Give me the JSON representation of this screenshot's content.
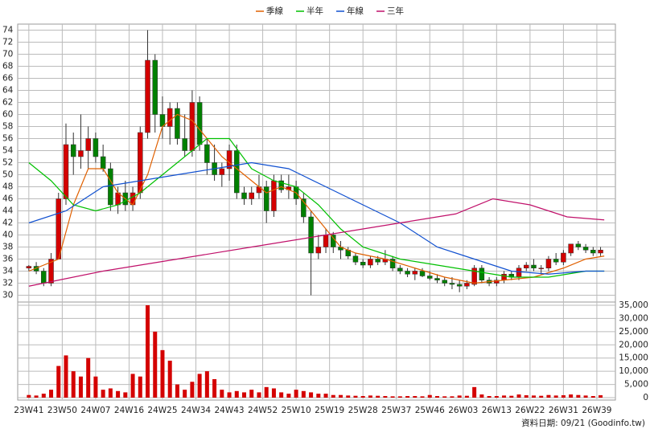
{
  "chart_data": {
    "type": "candlestick",
    "note": "資料日期: 09/21  (Goodinfo.tw)",
    "up_color": "#d40000",
    "down_color": "#008000",
    "volume_color": "#d40000",
    "x": [
      0,
      2,
      4,
      6,
      8,
      10,
      12,
      14,
      16,
      18,
      20,
      22,
      24,
      26,
      28,
      30,
      32,
      34,
      36,
      38,
      40,
      42,
      44,
      46,
      48,
      50,
      52,
      54,
      56,
      58,
      60,
      62,
      64,
      66,
      68,
      70,
      72,
      74,
      76,
      78,
      80,
      82,
      84,
      86,
      88,
      90,
      92,
      94,
      96,
      98,
      100,
      102,
      104,
      106,
      108,
      110,
      112,
      114,
      116,
      118,
      120,
      122,
      124,
      126,
      128,
      130,
      132,
      134,
      136,
      138,
      140,
      142,
      144,
      146,
      148,
      150,
      152,
      154
    ],
    "open": [
      34.5,
      34.8,
      34,
      32,
      36,
      46,
      55,
      53,
      54,
      56,
      53,
      51,
      45,
      47,
      45,
      47,
      57,
      69,
      60,
      58,
      61,
      56,
      54,
      62,
      55,
      52,
      50,
      51,
      54,
      47,
      46,
      47,
      48,
      44,
      49,
      47.5,
      48,
      46,
      43,
      37,
      38,
      40,
      38,
      37.5,
      36.5,
      35.5,
      35,
      36,
      35.5,
      36,
      34.5,
      34,
      33.5,
      34,
      33.2,
      32.8,
      32.5,
      32,
      31.8,
      31.5,
      31.8,
      34.5,
      32.5,
      32,
      32.5,
      33.5,
      33,
      34.5,
      35,
      34.5,
      34.5,
      36,
      35.5,
      37,
      38.5,
      38,
      37.5,
      37
    ],
    "high": [
      35,
      35.5,
      34.5,
      37,
      47,
      58.5,
      57,
      60,
      58,
      57,
      55,
      52,
      48,
      49,
      48,
      58,
      74,
      70,
      63,
      62,
      62,
      60,
      64,
      63,
      56,
      55,
      52,
      55,
      55,
      48,
      48,
      50,
      49,
      50,
      50,
      50,
      49,
      47,
      44,
      40,
      41,
      40.5,
      39,
      38,
      37,
      36,
      36.5,
      36.5,
      37.5,
      36.5,
      35,
      34.5,
      34.5,
      34.5,
      34,
      33.5,
      33,
      33,
      32.5,
      32.5,
      35,
      35,
      33,
      33,
      34,
      34,
      35,
      35.5,
      36,
      35,
      36.5,
      37,
      37.5,
      38.5,
      39,
      38.5,
      38,
      38
    ],
    "low": [
      34,
      33.5,
      31.5,
      31.5,
      36,
      45,
      50,
      51,
      51,
      52,
      50.5,
      44,
      43.5,
      44,
      44,
      46,
      56,
      57,
      56,
      55,
      55,
      53,
      53,
      54,
      50,
      49,
      48,
      49,
      46,
      45,
      45,
      46,
      42,
      43,
      47,
      46,
      45,
      42,
      30,
      36,
      37,
      37,
      36,
      36,
      35,
      34.5,
      34.5,
      35,
      35,
      34,
      33.5,
      33,
      32.5,
      33,
      32.5,
      32,
      31.5,
      31,
      30.5,
      31,
      31.5,
      32,
      31.5,
      31.5,
      32,
      32.5,
      32.5,
      34,
      34,
      33.5,
      34,
      35,
      35,
      36.5,
      37.5,
      37,
      36.5,
      36.5
    ],
    "close": [
      34.8,
      34,
      32,
      36,
      46,
      55,
      53,
      54,
      56,
      53,
      51,
      45,
      47,
      45,
      47,
      57,
      69,
      60,
      58,
      61,
      56,
      54,
      62,
      55,
      52,
      50,
      51,
      54,
      47,
      46,
      47,
      48,
      44,
      49,
      47.5,
      48,
      46,
      43,
      37,
      38,
      40,
      38,
      37.5,
      36.5,
      35.5,
      35,
      36,
      35.5,
      36,
      34.5,
      34,
      33.5,
      34,
      33.2,
      32.8,
      32.5,
      32,
      31.8,
      31.5,
      32,
      34.5,
      32.5,
      32,
      32.5,
      33.5,
      33,
      34.5,
      35,
      34.5,
      34.5,
      36,
      35.5,
      37,
      38.5,
      38,
      37.5,
      37,
      37.5
    ],
    "volume": {
      "values": [
        1000,
        800,
        1500,
        3000,
        12000,
        16000,
        10000,
        8000,
        15000,
        8000,
        3000,
        3500,
        2500,
        2000,
        9000,
        8000,
        35000,
        25000,
        18000,
        14000,
        5000,
        3000,
        6000,
        9000,
        10000,
        7000,
        3000,
        2000,
        2500,
        2000,
        3000,
        2000,
        4000,
        3500,
        2000,
        1500,
        3000,
        2500,
        2000,
        1500,
        1500,
        1000,
        1000,
        800,
        700,
        600,
        800,
        700,
        600,
        500,
        500,
        600,
        600,
        500,
        1000,
        600,
        500,
        500,
        800,
        700,
        4000,
        1200,
        600,
        600,
        800,
        700,
        1200,
        900,
        800,
        700,
        1000,
        800,
        900,
        1200,
        1000,
        800,
        600,
        900
      ]
    },
    "series": [
      {
        "name": "季線",
        "color": "#e06000",
        "x": [
          0,
          8,
          12,
          16,
          20,
          24,
          28,
          32,
          36,
          40,
          44,
          48,
          52,
          56,
          60,
          64,
          68,
          72,
          76,
          80,
          84,
          88,
          96,
          104,
          112,
          120,
          128,
          136,
          144,
          150,
          155
        ],
        "values": [
          34,
          36,
          45,
          51,
          51,
          47,
          45,
          50,
          58,
          60,
          59,
          56,
          53,
          51,
          49,
          47,
          48,
          47,
          44,
          41,
          38,
          37,
          36,
          34.5,
          33,
          32,
          32.5,
          33,
          34.5,
          36,
          36.5
        ]
      },
      {
        "name": "半年",
        "color": "#00c000",
        "x": [
          0,
          6,
          12,
          18,
          24,
          30,
          36,
          42,
          48,
          54,
          60,
          66,
          72,
          78,
          84,
          90,
          100,
          110,
          120,
          130,
          140,
          150,
          155
        ],
        "values": [
          52,
          49,
          45,
          44,
          45,
          47,
          50,
          53,
          56,
          56,
          51,
          49,
          48,
          45,
          41,
          38,
          36,
          35,
          34,
          33,
          33,
          34,
          34
        ]
      },
      {
        "name": "年線",
        "color": "#1050d0",
        "x": [
          0,
          10,
          20,
          30,
          40,
          50,
          60,
          70,
          80,
          90,
          100,
          110,
          120,
          130,
          140,
          150,
          155
        ],
        "values": [
          42,
          44,
          48,
          49,
          50,
          51,
          52,
          51,
          48,
          45,
          42,
          38,
          36,
          34,
          33.5,
          34,
          34
        ]
      },
      {
        "name": "三年",
        "color": "#c0106a",
        "x": [
          0,
          20,
          40,
          60,
          80,
          100,
          115,
          125,
          135,
          145,
          155
        ],
        "values": [
          31.5,
          34,
          36,
          38,
          40,
          42,
          43.5,
          46,
          45,
          43,
          42.5
        ]
      }
    ],
    "xlim": [
      -3,
      158
    ],
    "xticks": [
      {
        "value": 0,
        "label": "23W41"
      },
      {
        "value": 9,
        "label": "23W50"
      },
      {
        "value": 18,
        "label": "24W07"
      },
      {
        "value": 27,
        "label": "24W16"
      },
      {
        "value": 36,
        "label": "24W25"
      },
      {
        "value": 45,
        "label": "24W34"
      },
      {
        "value": 54,
        "label": "24W43"
      },
      {
        "value": 63,
        "label": "24W52"
      },
      {
        "value": 72,
        "label": "25W10"
      },
      {
        "value": 81,
        "label": "25W19"
      },
      {
        "value": 90,
        "label": "25W28"
      },
      {
        "value": 99,
        "label": "25W37"
      },
      {
        "value": 108,
        "label": "25W46"
      },
      {
        "value": 117,
        "label": "26W03"
      },
      {
        "value": 126,
        "label": "26W13"
      },
      {
        "value": 135,
        "label": "26W22"
      },
      {
        "value": 144,
        "label": "26W31"
      },
      {
        "value": 153,
        "label": "26W39"
      }
    ],
    "ylim": [
      29,
      75
    ],
    "yticks": [
      30,
      32,
      34,
      36,
      38,
      40,
      42,
      44,
      46,
      48,
      50,
      52,
      54,
      56,
      58,
      60,
      62,
      64,
      66,
      68,
      70,
      72,
      74
    ],
    "y2lim": [
      0,
      35000
    ],
    "y2ticks": [
      0,
      {
        "value": 5000,
        "label": "5,000"
      },
      {
        "value": 10000,
        "label": "10,000"
      },
      {
        "value": 15000,
        "label": "15,000"
      },
      {
        "value": 20000,
        "label": "20,000"
      },
      {
        "value": 25000,
        "label": "25,000"
      },
      {
        "value": 30000,
        "label": "30,000"
      },
      {
        "value": 35000,
        "label": "35,000"
      }
    ],
    "grid": true
  }
}
